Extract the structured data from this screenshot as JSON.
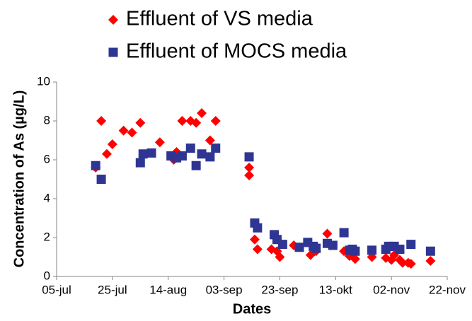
{
  "chart_data": {
    "type": "scatter",
    "xlabel": "Dates",
    "ylabel": "Concentration of As (µg/L)",
    "legend": "top",
    "xlim": [
      "07-05",
      "11-22"
    ],
    "xticks": [
      {
        "value": "07-05",
        "label": "05-jul"
      },
      {
        "value": "07-25",
        "label": "25-jul"
      },
      {
        "value": "08-14",
        "label": "14-aug"
      },
      {
        "value": "09-03",
        "label": "03-sep"
      },
      {
        "value": "09-23",
        "label": "23-sep"
      },
      {
        "value": "10-13",
        "label": "13-okt"
      },
      {
        "value": "11-02",
        "label": "02-nov"
      },
      {
        "value": "11-22",
        "label": "22-nov"
      }
    ],
    "ylim": [
      0,
      10
    ],
    "yticks": [
      0,
      2,
      4,
      6,
      8,
      10
    ],
    "series": [
      {
        "name": "Effluent of VS media",
        "color": "#ff0000",
        "marker": "diamond",
        "x": [
          "07-19",
          "07-21",
          "07-23",
          "07-25",
          "07-29",
          "08-01",
          "08-04",
          "08-11",
          "08-16",
          "08-17",
          "08-19",
          "08-22",
          "08-24",
          "08-26",
          "08-29",
          "08-31",
          "09-12",
          "09-12",
          "09-14",
          "09-15",
          "09-20",
          "09-22",
          "09-23",
          "09-28",
          "10-04",
          "10-06",
          "10-10",
          "10-11",
          "10-16",
          "10-18",
          "10-20",
          "10-26",
          "10-31",
          "11-02",
          "11-03",
          "11-05",
          "11-06",
          "11-08",
          "11-09",
          "11-16"
        ],
        "values": [
          5.6,
          8.0,
          6.3,
          6.8,
          7.5,
          7.4,
          7.9,
          6.9,
          6.0,
          6.4,
          8.0,
          8.0,
          7.9,
          8.4,
          7.0,
          8.0,
          5.6,
          5.2,
          1.9,
          1.4,
          1.4,
          1.3,
          1.0,
          1.6,
          1.1,
          1.3,
          2.2,
          1.6,
          1.3,
          1.05,
          0.9,
          1.0,
          0.95,
          0.85,
          1.1,
          0.85,
          0.7,
          0.7,
          0.65,
          0.8
        ]
      },
      {
        "name": "Effluent of MOCS media",
        "color": "#2e3592",
        "marker": "square",
        "x": [
          "07-19",
          "07-21",
          "08-04",
          "08-05",
          "08-08",
          "08-15",
          "08-17",
          "08-19",
          "08-22",
          "08-24",
          "08-26",
          "08-29",
          "08-31",
          "09-12",
          "09-14",
          "09-15",
          "09-21",
          "09-22",
          "09-24",
          "09-30",
          "10-03",
          "10-05",
          "10-06",
          "10-10",
          "10-12",
          "10-16",
          "10-18",
          "10-19",
          "10-20",
          "10-26",
          "10-31",
          "11-01",
          "11-03",
          "11-05",
          "11-09",
          "11-16"
        ],
        "values": [
          5.7,
          5.0,
          5.85,
          6.3,
          6.35,
          6.2,
          6.1,
          6.2,
          6.6,
          5.7,
          6.3,
          6.15,
          6.6,
          6.15,
          2.75,
          2.5,
          2.15,
          1.9,
          1.65,
          1.5,
          1.75,
          1.55,
          1.45,
          1.7,
          1.6,
          2.25,
          1.35,
          1.4,
          1.3,
          1.35,
          1.4,
          1.55,
          1.55,
          1.4,
          1.65,
          1.3
        ]
      }
    ]
  }
}
